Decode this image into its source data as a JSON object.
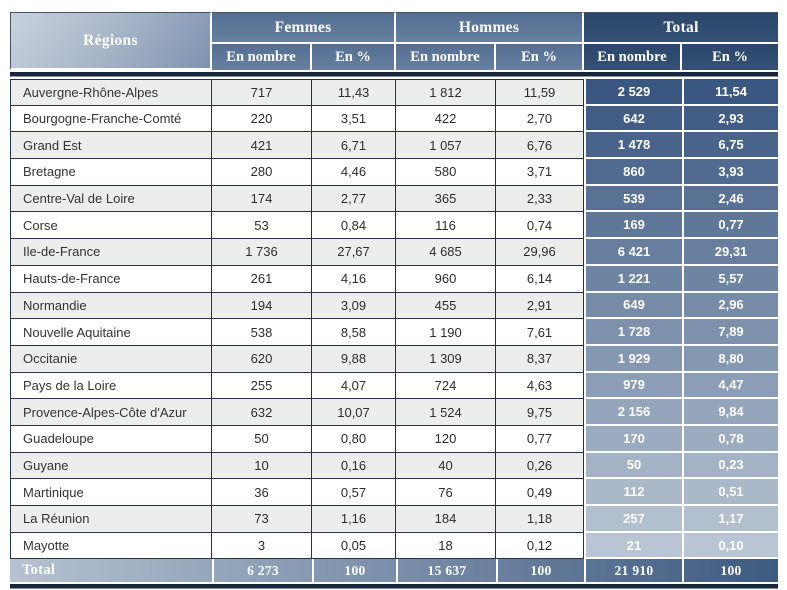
{
  "table": {
    "header": {
      "regions_label": "Régions",
      "groups": [
        {
          "label": "Femmes",
          "sub": [
            "En nombre",
            "En %"
          ]
        },
        {
          "label": "Hommes",
          "sub": [
            "En nombre",
            "En %"
          ]
        },
        {
          "label": "Total",
          "sub": [
            "En nombre",
            "En %"
          ]
        }
      ]
    },
    "columns": [
      "Régions",
      "Femmes En nombre",
      "Femmes En %",
      "Hommes En nombre",
      "Hommes En %",
      "Total En nombre",
      "Total En %"
    ],
    "rows": [
      [
        "Auvergne-Rhône-Alpes",
        "717",
        "11,43",
        "1 812",
        "11,59",
        "2 529",
        "11,54"
      ],
      [
        "Bourgogne-Franche-Comté",
        "220",
        "3,51",
        "422",
        "2,70",
        "642",
        "2,93"
      ],
      [
        "Grand Est",
        "421",
        "6,71",
        "1 057",
        "6,76",
        "1 478",
        "6,75"
      ],
      [
        "Bretagne",
        "280",
        "4,46",
        "580",
        "3,71",
        "860",
        "3,93"
      ],
      [
        "Centre-Val de Loire",
        "174",
        "2,77",
        "365",
        "2,33",
        "539",
        "2,46"
      ],
      [
        "Corse",
        "53",
        "0,84",
        "116",
        "0,74",
        "169",
        "0,77"
      ],
      [
        "Ile-de-France",
        "1 736",
        "27,67",
        "4 685",
        "29,96",
        "6 421",
        "29,31"
      ],
      [
        "Hauts-de-France",
        "261",
        "4,16",
        "960",
        "6,14",
        "1 221",
        "5,57"
      ],
      [
        "Normandie",
        "194",
        "3,09",
        "455",
        "2,91",
        "649",
        "2,96"
      ],
      [
        "Nouvelle Aquitaine",
        "538",
        "8,58",
        "1 190",
        "7,61",
        "1 728",
        "7,89"
      ],
      [
        "Occitanie",
        "620",
        "9,88",
        "1 309",
        "8,37",
        "1 929",
        "8,80"
      ],
      [
        "Pays de la Loire",
        "255",
        "4,07",
        "724",
        "4,63",
        "979",
        "4,47"
      ],
      [
        "Provence-Alpes-Côte d'Azur",
        "632",
        "10,07",
        "1 524",
        "9,75",
        "2 156",
        "9,84"
      ],
      [
        "Guadeloupe",
        "50",
        "0,80",
        "120",
        "0,77",
        "170",
        "0,78"
      ],
      [
        "Guyane",
        "10",
        "0,16",
        "40",
        "0,26",
        "50",
        "0,23"
      ],
      [
        "Martinique",
        "36",
        "0,57",
        "76",
        "0,49",
        "112",
        "0,51"
      ],
      [
        "La Réunion",
        "73",
        "1,16",
        "184",
        "1,18",
        "257",
        "1,17"
      ],
      [
        "Mayotte",
        "3",
        "0,05",
        "18",
        "0,12",
        "21",
        "0,10"
      ]
    ],
    "footer": {
      "cells": [
        "Total",
        "6 273",
        "100",
        "15 637",
        "100",
        "21 910",
        "100"
      ]
    }
  },
  "colors": {
    "header_blue": "#5b7499",
    "header_dark_navy": "#2e4a6d",
    "regions_gradient_start": "#c9d2de",
    "regions_gradient_end": "#7e93b0",
    "stripe_gray": "#ededec",
    "cell_border_dark": "#253449",
    "thick_line": "#16263c",
    "total_col_start": "#3a5781",
    "total_col_end": "#b9c5d4",
    "footer_gradient_start": "#b5c2d2",
    "footer_gradient_end": "#3d5a80"
  }
}
